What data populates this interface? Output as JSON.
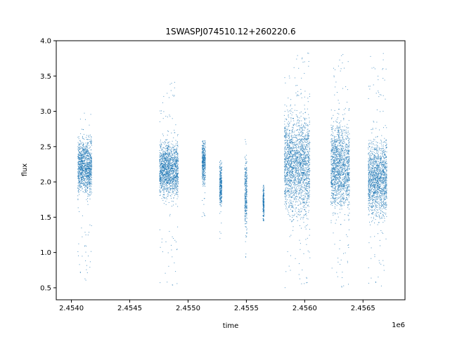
{
  "chart_data": {
    "type": "scatter",
    "title": "1SWASPJ074510.12+260220.6",
    "xlabel": "time",
    "ylabel": "flux",
    "x_offset_label": "1e6",
    "x_ticks": [
      2.454,
      2.4545,
      2.455,
      2.4555,
      2.456,
      2.4565
    ],
    "x_tick_labels": [
      "2.4540",
      "2.4545",
      "2.4550",
      "2.4555",
      "2.4560",
      "2.4565"
    ],
    "y_ticks": [
      0.5,
      1.0,
      1.5,
      2.0,
      2.5,
      3.0,
      3.5,
      4.0
    ],
    "y_tick_labels": [
      "0.5",
      "1.0",
      "1.5",
      "2.0",
      "2.5",
      "3.0",
      "3.5",
      "4.0"
    ],
    "xlim": [
      2.45387,
      2.45686
    ],
    "ylim": [
      0.33,
      4.0
    ],
    "marker_color": "#1f77b4",
    "grid": false,
    "legend": "none",
    "x_units_note": "values in units of 1e6",
    "clusters": [
      {
        "x_center": 2.454115,
        "x_width": 0.00012,
        "y_center": 2.22,
        "y_spread": 0.18,
        "y_min": 0.57,
        "y_max": 3.05
      },
      {
        "x_center": 2.454836,
        "x_width": 0.00016,
        "y_center": 2.18,
        "y_spread": 0.18,
        "y_min": 0.49,
        "y_max": 3.42
      },
      {
        "x_center": 2.455135,
        "x_width": 3e-05,
        "y_center": 2.3,
        "y_spread": 0.15,
        "y_min": 1.4,
        "y_max": 2.58
      },
      {
        "x_center": 2.45528,
        "x_width": 2e-05,
        "y_center": 1.95,
        "y_spread": 0.15,
        "y_min": 1.14,
        "y_max": 2.3
      },
      {
        "x_center": 2.455496,
        "x_width": 2e-05,
        "y_center": 1.85,
        "y_spread": 0.25,
        "y_min": 0.88,
        "y_max": 2.72
      },
      {
        "x_center": 2.455647,
        "x_width": 1e-05,
        "y_center": 1.7,
        "y_spread": 0.12,
        "y_min": 1.45,
        "y_max": 1.95
      },
      {
        "x_center": 2.455935,
        "x_width": 0.00022,
        "y_center": 2.25,
        "y_spread": 0.33,
        "y_min": 0.5,
        "y_max": 3.83
      },
      {
        "x_center": 2.456305,
        "x_width": 0.00016,
        "y_center": 2.22,
        "y_spread": 0.3,
        "y_min": 0.47,
        "y_max": 3.83
      },
      {
        "x_center": 2.456625,
        "x_width": 0.00016,
        "y_center": 2.05,
        "y_spread": 0.25,
        "y_min": 0.47,
        "y_max": 3.83
      }
    ]
  }
}
